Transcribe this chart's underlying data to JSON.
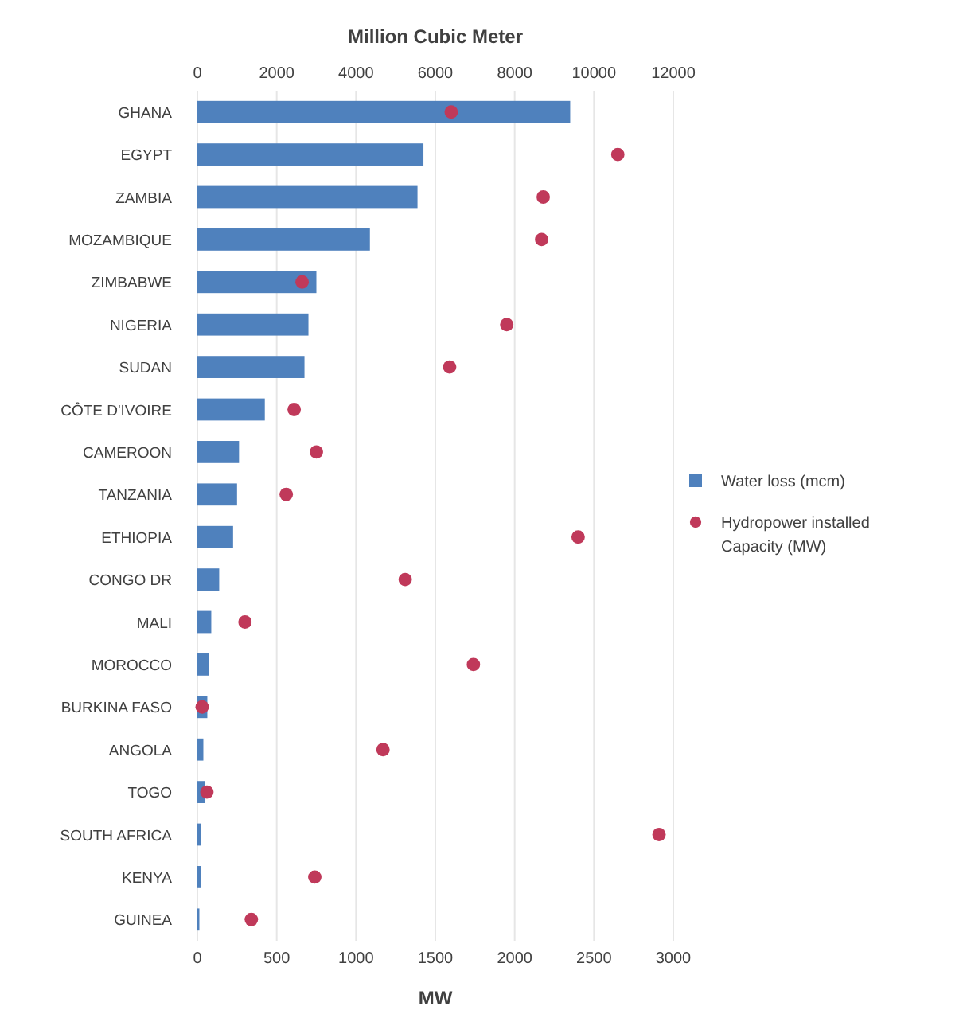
{
  "chart_data": {
    "type": "bar",
    "orientation": "horizontal",
    "x2label": "Million Cubic Meter",
    "xlabel": "MW",
    "categories": [
      "GHANA",
      "EGYPT",
      "ZAMBIA",
      "MOZAMBIQUE",
      "ZIMBABWE",
      "NIGERIA",
      "SUDAN",
      "CÔTE D'IVOIRE",
      "CAMEROON",
      "TANZANIA",
      "ETHIOPIA",
      "CONGO DR",
      "MALI",
      "MOROCCO",
      "BURKINA FASO",
      "ANGOLA",
      "TOGO",
      "SOUTH AFRICA",
      "KENYA",
      "GUINEA"
    ],
    "series": [
      {
        "name": "Water loss (mcm)",
        "axis": "x2",
        "color": "#4f81bd",
        "values": [
          9400,
          5700,
          5550,
          4350,
          3000,
          2800,
          2700,
          1700,
          1050,
          1000,
          900,
          550,
          350,
          300,
          250,
          150,
          200,
          100,
          100,
          50
        ]
      },
      {
        "name": "Hydropower installed Capacity (MW)",
        "type": "scatter",
        "color": "#c0395a",
        "values": [
          1600,
          2650,
          2180,
          2170,
          660,
          1950,
          1590,
          610,
          750,
          560,
          2400,
          1310,
          300,
          1740,
          30,
          1170,
          60,
          2910,
          740,
          340
        ]
      }
    ],
    "xlim": [
      0,
      3000
    ],
    "xticks": [
      0,
      500,
      1000,
      1500,
      2000,
      2500,
      3000
    ],
    "x2lim": [
      0,
      12000
    ],
    "x2ticks": [
      0,
      2000,
      4000,
      6000,
      8000,
      10000,
      12000
    ],
    "grid": "x",
    "legend": "right",
    "marker": "circle"
  }
}
